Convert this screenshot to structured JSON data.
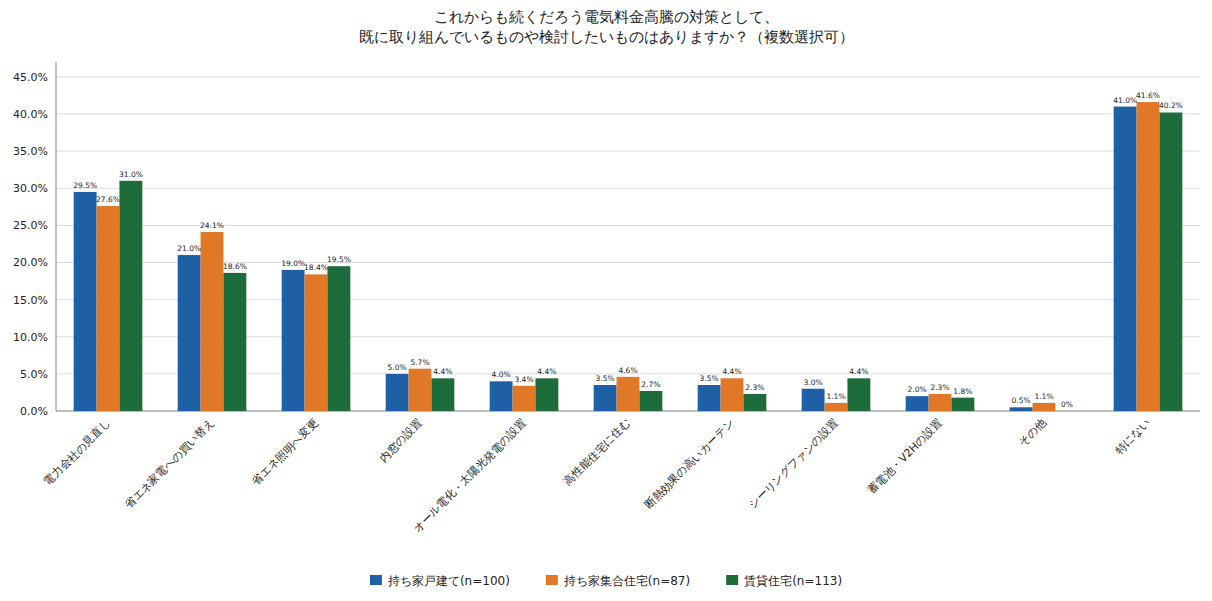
{
  "chart_data": {
    "type": "bar",
    "title": "これからも続くだろう電気料金高騰の対策として、\n既に取り組んでいるものや検討したいものはありますか？（複数選択可）",
    "categories": [
      "電力会社の見直し",
      "省エネ家電への買い替え",
      "省エネ照明へ変更",
      "内窓の設置",
      "オール電化・太陽光発電の設置",
      "高性能住宅に住む",
      "断熱効果の高いカーテン",
      "シーリングファンの設置",
      "蓄電池・V2Hの設置",
      "その他",
      "特にない"
    ],
    "series": [
      {
        "name": "持ち家戸建て(n=100)",
        "color": "#1f5fa6",
        "values": [
          29.5,
          21.0,
          19.0,
          5.0,
          4.0,
          3.5,
          3.5,
          3.0,
          2.0,
          0.5,
          41.0
        ],
        "value_labels": [
          "29.5%",
          "21.0%",
          "19.0%",
          "5.0%",
          "4.0%",
          "3.5%",
          "3.5%",
          "3.0%",
          "2.0%",
          "0.5%",
          "41.0%"
        ]
      },
      {
        "name": "持ち家集合住宅(n=87)",
        "color": "#e07828",
        "values": [
          27.6,
          24.1,
          18.4,
          5.7,
          3.4,
          4.6,
          4.4,
          1.1,
          2.3,
          1.1,
          41.6
        ],
        "value_labels": [
          "27.6%",
          "24.1%",
          "18.4%",
          "5.7%",
          "3.4%",
          "4.6%",
          "4.4%",
          "1.1%",
          "2.3%",
          "1.1%",
          "41.6%"
        ]
      },
      {
        "name": "賃貸住宅(n=113)",
        "color": "#1e6b3c",
        "values": [
          31.0,
          18.6,
          19.5,
          4.4,
          4.4,
          2.7,
          2.3,
          4.4,
          1.8,
          0.0,
          40.2
        ],
        "value_labels": [
          "31.0%",
          "18.6%",
          "19.5%",
          "4.4%",
          "4.4%",
          "2.7%",
          "2.3%",
          "4.4%",
          "1.8%",
          "0%",
          "40.2%"
        ]
      }
    ],
    "ylim": [
      0,
      47
    ],
    "yticks": [
      {
        "value": 0,
        "label": "0.0%"
      },
      {
        "value": 5,
        "label": "5.0%"
      },
      {
        "value": 10,
        "label": "10.0%"
      },
      {
        "value": 15,
        "label": "15.0%"
      },
      {
        "value": 20,
        "label": "20.0%"
      },
      {
        "value": 25,
        "label": "25.0%"
      },
      {
        "value": 30,
        "label": "30.0%"
      },
      {
        "value": 35,
        "label": "35.0%"
      },
      {
        "value": 40,
        "label": "40.0%"
      },
      {
        "value": 45,
        "label": "45.0%"
      }
    ],
    "grid": true,
    "legend": "bottom",
    "data_labels": true
  }
}
